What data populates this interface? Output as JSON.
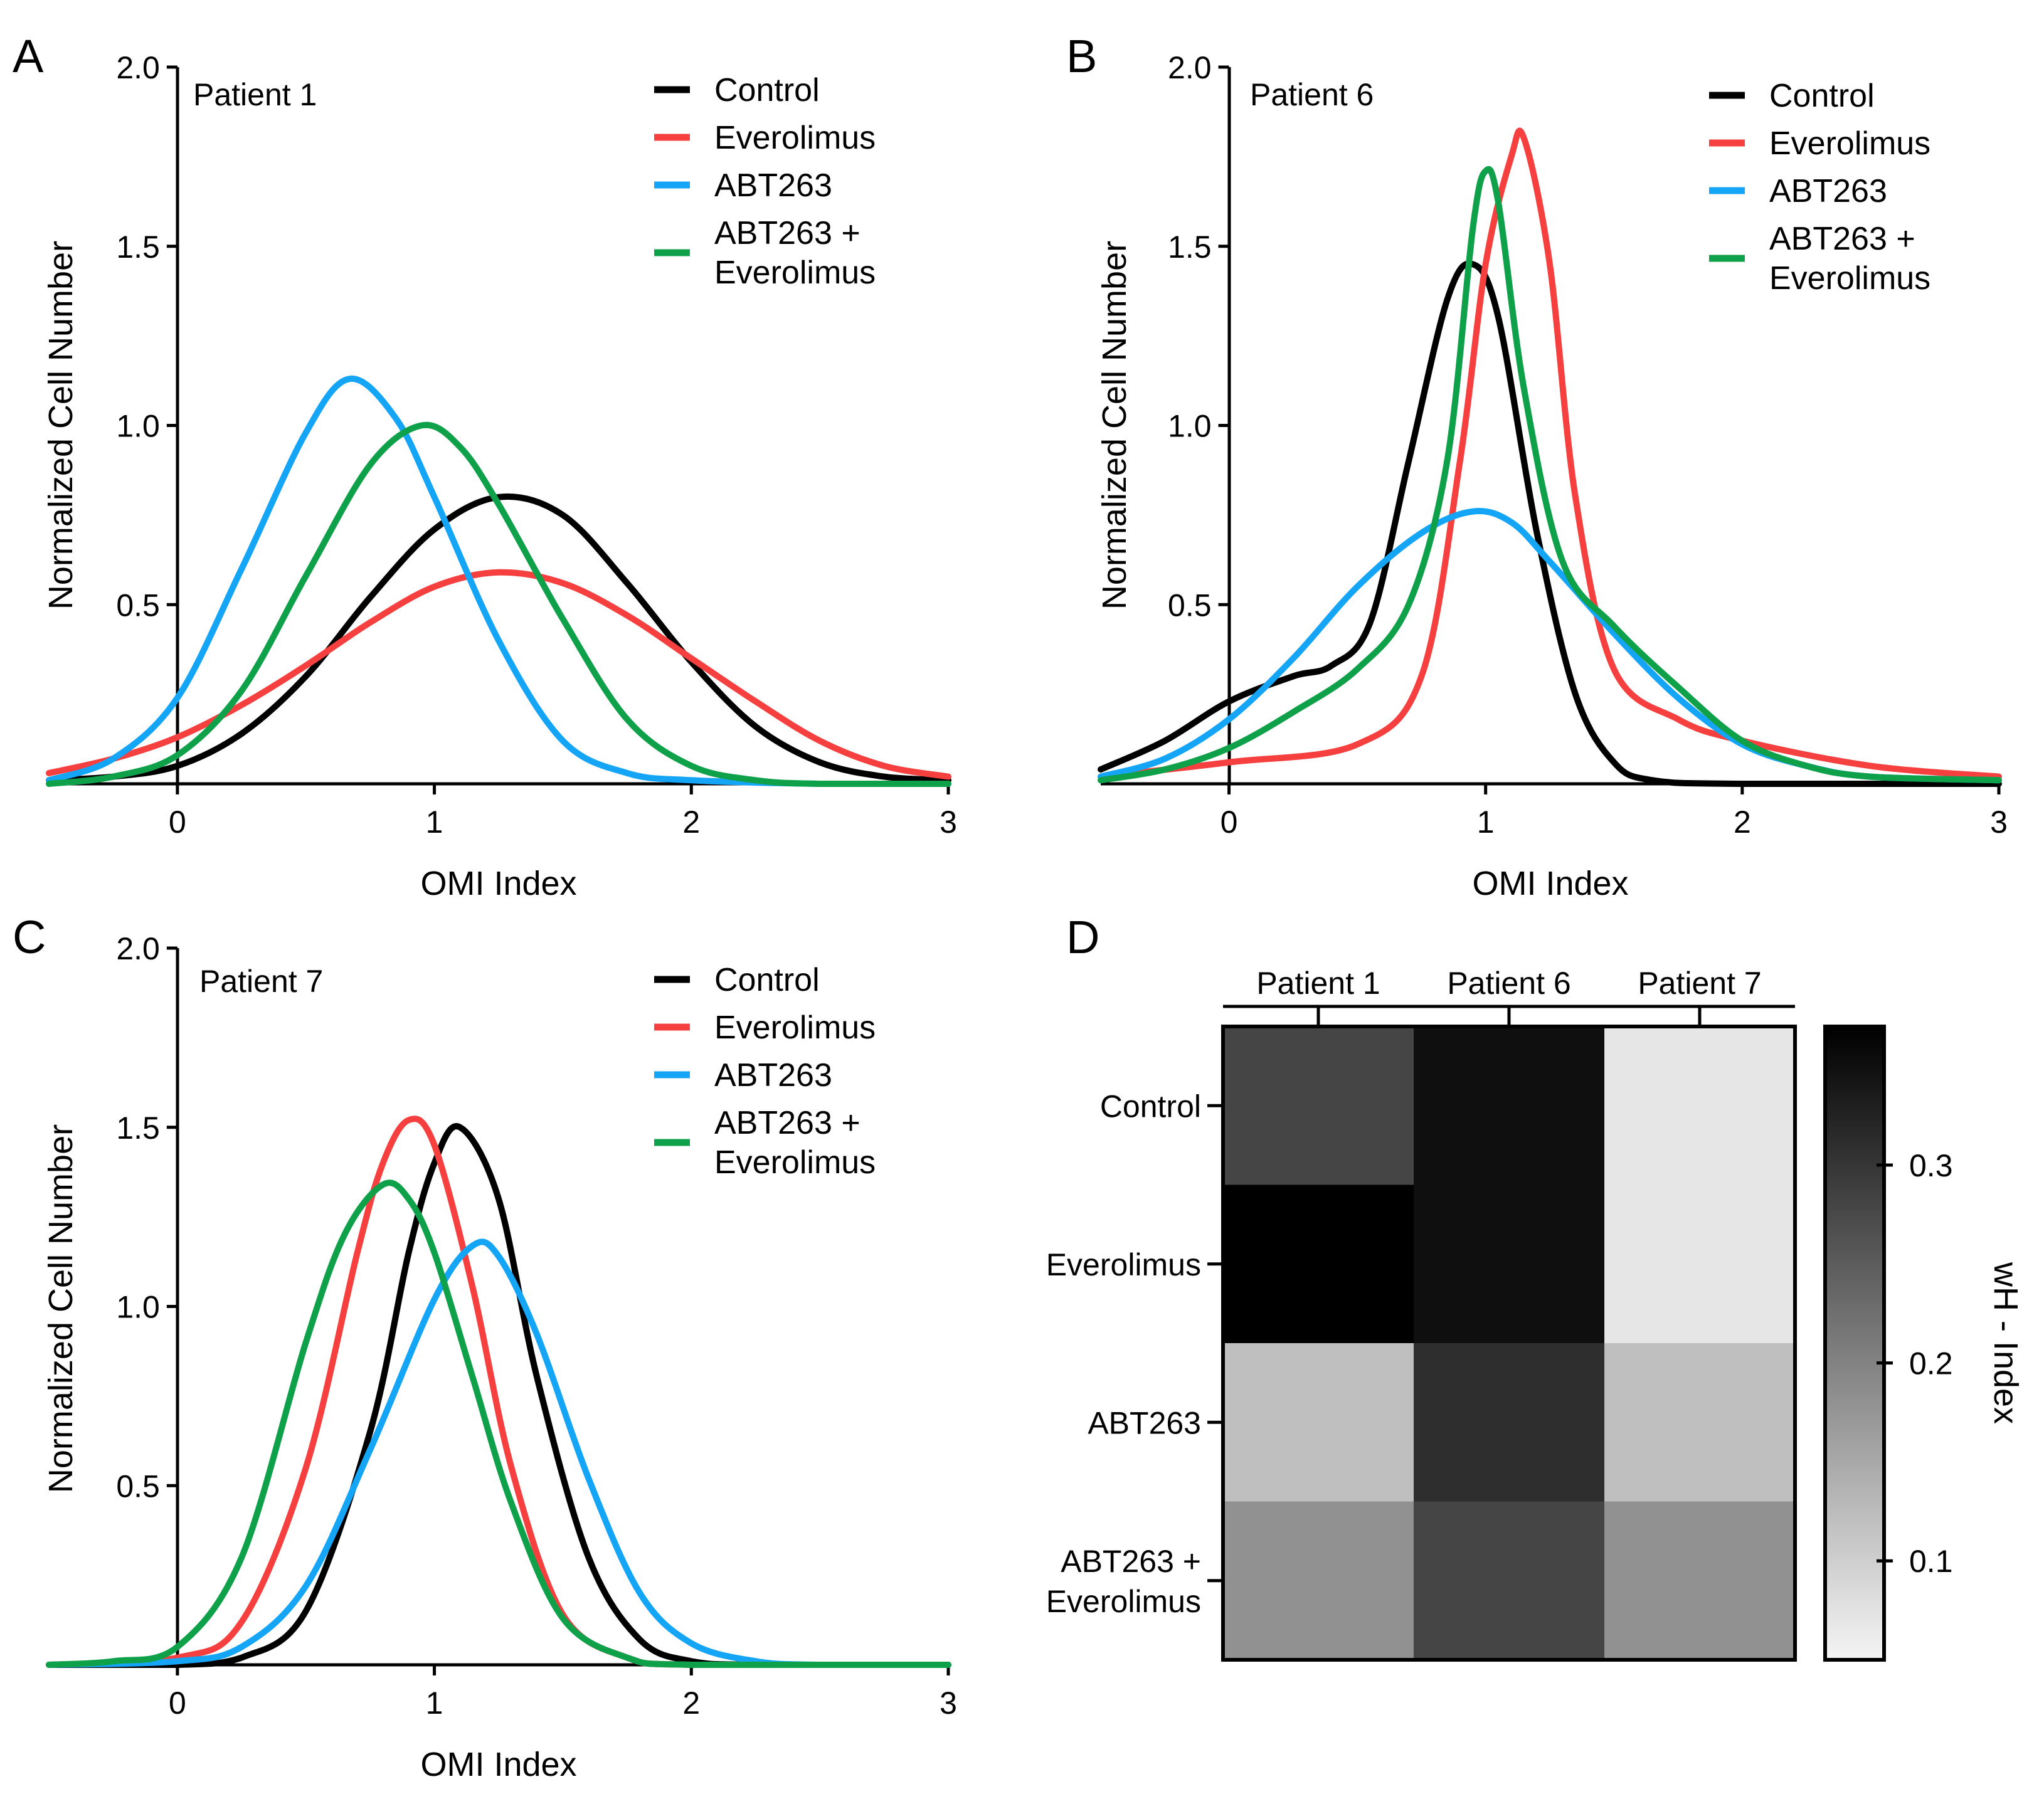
{
  "colors": {
    "control": "#000000",
    "everolimus": "#f5403f",
    "abt263": "#14a5f6",
    "combo": "#0fa14a"
  },
  "chart_data": [
    {
      "panel": "A",
      "type": "line",
      "title": "Patient 1",
      "xlabel": "OMI Index",
      "ylabel": "Normalized Cell Number",
      "xlim": [
        -0.5,
        3
      ],
      "ylim": [
        0,
        2.0
      ],
      "xticks": [
        "0",
        "1",
        "2",
        "3"
      ],
      "yticks": [
        "0.5",
        "1.0",
        "1.5",
        "2.0"
      ],
      "legend_position": "top-right",
      "series": [
        {
          "name": "Control",
          "color": "#000000",
          "x": [
            -0.5,
            -0.25,
            0,
            0.25,
            0.5,
            0.75,
            1,
            1.25,
            1.5,
            1.75,
            2,
            2.25,
            2.5,
            2.75,
            3
          ],
          "y": [
            0.01,
            0.02,
            0.05,
            0.14,
            0.3,
            0.52,
            0.71,
            0.8,
            0.75,
            0.56,
            0.34,
            0.16,
            0.06,
            0.02,
            0.01
          ]
        },
        {
          "name": "Everolimus",
          "color": "#f5403f",
          "x": [
            -0.5,
            -0.25,
            0,
            0.25,
            0.5,
            0.75,
            1,
            1.25,
            1.5,
            1.75,
            2,
            2.25,
            2.5,
            2.75,
            3
          ],
          "y": [
            0.03,
            0.07,
            0.13,
            0.22,
            0.33,
            0.45,
            0.55,
            0.59,
            0.56,
            0.47,
            0.35,
            0.23,
            0.12,
            0.05,
            0.02
          ]
        },
        {
          "name": "ABT263",
          "color": "#14a5f6",
          "x": [
            -0.5,
            -0.25,
            0,
            0.25,
            0.5,
            0.67,
            0.85,
            1,
            1.25,
            1.5,
            1.75,
            2,
            2.5,
            3
          ],
          "y": [
            0.01,
            0.07,
            0.24,
            0.6,
            0.98,
            1.13,
            1.02,
            0.8,
            0.4,
            0.12,
            0.03,
            0.01,
            0.0,
            0.0
          ]
        },
        {
          "name": "ABT263 + Everolimus",
          "color": "#0fa14a",
          "x": [
            -0.5,
            -0.25,
            0,
            0.25,
            0.5,
            0.75,
            0.95,
            1.1,
            1.25,
            1.5,
            1.75,
            2,
            2.25,
            2.5,
            3
          ],
          "y": [
            0.0,
            0.02,
            0.08,
            0.26,
            0.58,
            0.89,
            1.0,
            0.94,
            0.78,
            0.46,
            0.18,
            0.05,
            0.01,
            0.0,
            0.0
          ]
        }
      ]
    },
    {
      "panel": "B",
      "type": "line",
      "title": "Patient 6",
      "xlabel": "OMI Index",
      "ylabel": "Normalized Cell Number",
      "xlim": [
        -0.5,
        3
      ],
      "ylim": [
        0,
        2.0
      ],
      "xticks": [
        "0",
        "1",
        "2",
        "3"
      ],
      "yticks": [
        "0.5",
        "1.0",
        "1.5",
        "2.0"
      ],
      "legend_position": "top-right",
      "series": [
        {
          "name": "Control",
          "color": "#000000",
          "x": [
            -0.5,
            -0.25,
            0,
            0.25,
            0.4,
            0.55,
            0.7,
            0.85,
            0.95,
            1.05,
            1.2,
            1.35,
            1.5,
            1.65,
            2,
            3
          ],
          "y": [
            0.04,
            0.12,
            0.23,
            0.3,
            0.33,
            0.45,
            0.9,
            1.35,
            1.45,
            1.3,
            0.7,
            0.25,
            0.06,
            0.01,
            0.0,
            0.0
          ]
        },
        {
          "name": "Everolimus",
          "color": "#f5403f",
          "x": [
            -0.5,
            0,
            0.5,
            0.75,
            0.9,
            1.0,
            1.1,
            1.15,
            1.25,
            1.35,
            1.5,
            1.75,
            2,
            2.5,
            3
          ],
          "y": [
            0.02,
            0.06,
            0.11,
            0.3,
            0.9,
            1.45,
            1.75,
            1.8,
            1.45,
            0.8,
            0.32,
            0.18,
            0.12,
            0.05,
            0.02
          ]
        },
        {
          "name": "ABT263",
          "color": "#14a5f6",
          "x": [
            -0.5,
            -0.25,
            0,
            0.25,
            0.5,
            0.75,
            0.95,
            1.1,
            1.25,
            1.5,
            1.75,
            2,
            2.25,
            2.5,
            3
          ],
          "y": [
            0.02,
            0.07,
            0.18,
            0.35,
            0.55,
            0.7,
            0.76,
            0.73,
            0.62,
            0.42,
            0.24,
            0.11,
            0.05,
            0.02,
            0.01
          ]
        },
        {
          "name": "ABT263 + Everolimus",
          "color": "#0fa14a",
          "x": [
            -0.5,
            -0.25,
            0,
            0.25,
            0.5,
            0.7,
            0.85,
            0.95,
            1.0,
            1.05,
            1.15,
            1.3,
            1.5,
            1.75,
            2,
            2.25,
            2.5,
            3
          ],
          "y": [
            0.01,
            0.04,
            0.1,
            0.2,
            0.32,
            0.5,
            0.9,
            1.55,
            1.71,
            1.62,
            1.1,
            0.62,
            0.44,
            0.27,
            0.12,
            0.05,
            0.02,
            0.01
          ]
        }
      ]
    },
    {
      "panel": "C",
      "type": "line",
      "title": "Patient 7",
      "xlabel": "OMI Index",
      "ylabel": "Normalized Cell Number",
      "xlim": [
        -0.5,
        3
      ],
      "ylim": [
        0,
        2.0
      ],
      "xticks": [
        "0",
        "1",
        "2",
        "3"
      ],
      "yticks": [
        "0.5",
        "1.0",
        "1.5",
        "2.0"
      ],
      "legend_position": "top-right",
      "series": [
        {
          "name": "Control",
          "color": "#000000",
          "x": [
            -0.5,
            0,
            0.25,
            0.5,
            0.75,
            0.9,
            1.0,
            1.1,
            1.25,
            1.4,
            1.6,
            1.8,
            2,
            2.25,
            3
          ],
          "y": [
            0.0,
            0.0,
            0.02,
            0.15,
            0.65,
            1.15,
            1.4,
            1.5,
            1.3,
            0.8,
            0.3,
            0.07,
            0.01,
            0.0,
            0.0
          ]
        },
        {
          "name": "Everolimus",
          "color": "#f5403f",
          "x": [
            -0.5,
            0,
            0.25,
            0.5,
            0.7,
            0.8,
            0.9,
            1.0,
            1.15,
            1.3,
            1.5,
            1.75,
            2,
            3
          ],
          "y": [
            0.0,
            0.02,
            0.12,
            0.55,
            1.15,
            1.4,
            1.52,
            1.45,
            1.05,
            0.55,
            0.14,
            0.02,
            0.0,
            0.0
          ]
        },
        {
          "name": "ABT263",
          "color": "#14a5f6",
          "x": [
            -0.5,
            0,
            0.25,
            0.5,
            0.75,
            1.0,
            1.15,
            1.25,
            1.4,
            1.6,
            1.8,
            2,
            2.25,
            2.5,
            3
          ],
          "y": [
            0.0,
            0.01,
            0.05,
            0.22,
            0.6,
            1.02,
            1.17,
            1.14,
            0.92,
            0.52,
            0.2,
            0.06,
            0.01,
            0.0,
            0.0
          ]
        },
        {
          "name": "ABT263 + Everolimus",
          "color": "#0fa14a",
          "x": [
            -0.5,
            -0.25,
            0,
            0.25,
            0.5,
            0.65,
            0.8,
            0.9,
            1.0,
            1.15,
            1.3,
            1.5,
            1.75,
            2,
            3
          ],
          "y": [
            0.0,
            0.01,
            0.05,
            0.3,
            0.9,
            1.2,
            1.34,
            1.3,
            1.15,
            0.8,
            0.45,
            0.13,
            0.02,
            0.0,
            0.0
          ]
        }
      ]
    },
    {
      "panel": "D",
      "type": "heatmap",
      "columns": [
        "Patient 1",
        "Patient 6",
        "Patient 7"
      ],
      "rows": [
        "Control",
        "Everolimus",
        "ABT263",
        "ABT263 + Everolimus"
      ],
      "values": [
        [
          0.28,
          0.35,
          0.07
        ],
        [
          0.37,
          0.35,
          0.07
        ],
        [
          0.12,
          0.31,
          0.12
        ],
        [
          0.18,
          0.28,
          0.18
        ]
      ],
      "colorbar": {
        "label": "wH - Index",
        "range": [
          0.05,
          0.37
        ],
        "ticks": [
          0.1,
          0.2,
          0.3
        ],
        "tick_labels": [
          "0.1",
          "0.2",
          "0.3"
        ]
      }
    }
  ]
}
